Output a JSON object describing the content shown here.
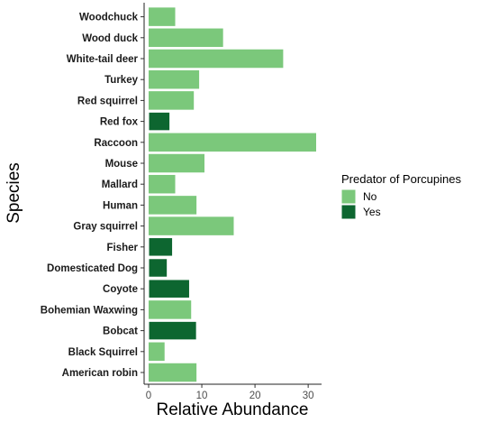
{
  "chart_data": {
    "type": "bar",
    "orientation": "horizontal",
    "xlabel": "Relative Abundance",
    "ylabel": "Species",
    "xlim": [
      0,
      31.5
    ],
    "x_ticks": [
      0,
      10,
      20,
      30
    ],
    "grid": false,
    "legend": {
      "title": "Predator of Porcupines",
      "placement": "right",
      "entries": [
        {
          "label": "No",
          "key": "No",
          "color": "#7bc87b"
        },
        {
          "label": "Yes",
          "key": "Yes",
          "color": "#0d6630"
        }
      ]
    },
    "bars": [
      {
        "category": "Woodchuck",
        "value": 5,
        "group": "No"
      },
      {
        "category": "Wood duck",
        "value": 14,
        "group": "No"
      },
      {
        "category": "White-tail deer",
        "value": 25.3,
        "group": "No"
      },
      {
        "category": "Turkey",
        "value": 9.5,
        "group": "No"
      },
      {
        "category": "Red squirrel",
        "value": 8.5,
        "group": "No"
      },
      {
        "category": "Red fox",
        "value": 4,
        "group": "Yes"
      },
      {
        "category": "Raccoon",
        "value": 31.5,
        "group": "No"
      },
      {
        "category": "Mouse",
        "value": 10.5,
        "group": "No"
      },
      {
        "category": "Mallard",
        "value": 5,
        "group": "No"
      },
      {
        "category": "Human",
        "value": 9,
        "group": "No"
      },
      {
        "category": "Gray squirrel",
        "value": 16,
        "group": "No"
      },
      {
        "category": "Fisher",
        "value": 4.5,
        "group": "Yes"
      },
      {
        "category": "Domesticated Dog",
        "value": 3.5,
        "group": "Yes"
      },
      {
        "category": "Coyote",
        "value": 7.7,
        "group": "Yes"
      },
      {
        "category": "Bohemian Waxwing",
        "value": 8,
        "group": "No"
      },
      {
        "category": "Bobcat",
        "value": 9,
        "group": "Yes"
      },
      {
        "category": "Black Squirrel",
        "value": 3,
        "group": "No"
      },
      {
        "category": "American robin",
        "value": 9,
        "group": "No"
      }
    ]
  }
}
